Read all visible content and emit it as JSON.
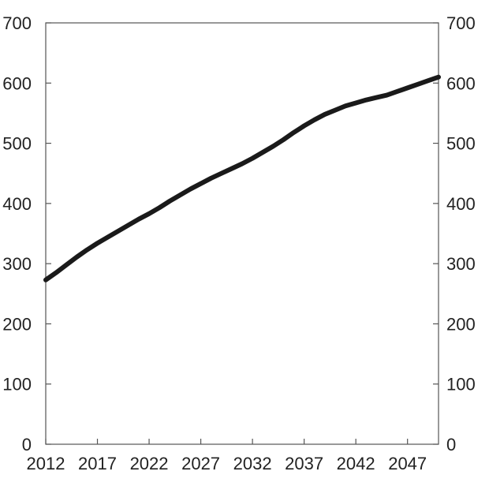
{
  "chart_data": {
    "type": "line",
    "title": "",
    "xlabel": "",
    "ylabel": "",
    "xlim": [
      2012,
      2050
    ],
    "ylim": [
      0,
      700
    ],
    "x_ticks": [
      2012,
      2017,
      2022,
      2027,
      2032,
      2037,
      2042,
      2047
    ],
    "y_ticks": [
      0,
      100,
      200,
      300,
      400,
      500,
      600,
      700
    ],
    "y_axis_right_mirrored": true,
    "grid": false,
    "legend": "none",
    "series": [
      {
        "color": "#1a1a1a",
        "x": [
          2012,
          2013,
          2014,
          2015,
          2016,
          2017,
          2018,
          2019,
          2020,
          2021,
          2022,
          2023,
          2024,
          2025,
          2026,
          2027,
          2028,
          2029,
          2030,
          2031,
          2032,
          2033,
          2034,
          2035,
          2036,
          2037,
          2038,
          2039,
          2040,
          2041,
          2042,
          2043,
          2044,
          2045,
          2046,
          2047,
          2048,
          2049,
          2050
        ],
        "values": [
          273,
          285,
          298,
          311,
          323,
          334,
          344,
          354,
          364,
          374,
          383,
          393,
          404,
          414,
          424,
          433,
          442,
          450,
          458,
          466,
          475,
          485,
          495,
          506,
          518,
          529,
          539,
          548,
          555,
          562,
          567,
          572,
          576,
          580,
          586,
          592,
          598,
          604,
          610
        ]
      }
    ]
  }
}
